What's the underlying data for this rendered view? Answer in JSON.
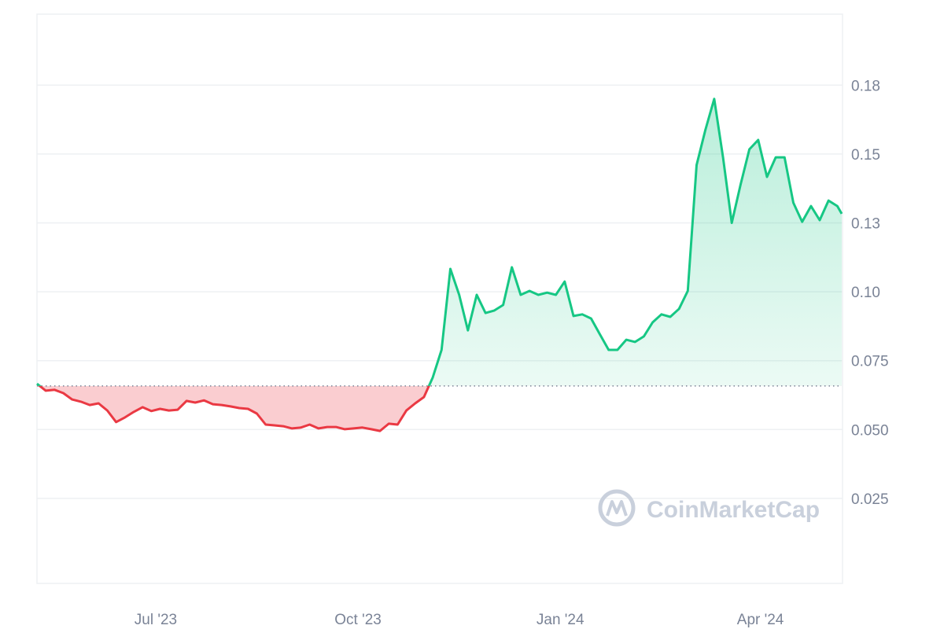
{
  "chart_data": {
    "type": "area",
    "title": "",
    "xlabel": "",
    "ylabel": "",
    "ylim": [
      0,
      0.2
    ],
    "grid": true,
    "baseline": 0.0658,
    "colors": {
      "up": "#16c784",
      "down": "#ea3943",
      "grid": "#eef0f3",
      "axis_text": "#7a8396",
      "watermark": "#c9d0dc"
    },
    "x_ticks": [
      {
        "date": "2023-07-01",
        "label": "Jul '23"
      },
      {
        "date": "2023-10-01",
        "label": "Oct '23"
      },
      {
        "date": "2024-01-01",
        "label": "Jan '24"
      },
      {
        "date": "2024-04-01",
        "label": "Apr '24"
      }
    ],
    "y_ticks": [
      {
        "value": 0.025,
        "label": "0.025"
      },
      {
        "value": 0.05,
        "label": "0.050"
      },
      {
        "value": 0.075,
        "label": "0.075"
      },
      {
        "value": 0.1,
        "label": "0.10"
      },
      {
        "value": 0.125,
        "label": "0.13"
      },
      {
        "value": 0.15,
        "label": "0.15"
      },
      {
        "value": 0.175,
        "label": "0.18"
      }
    ],
    "xlim": [
      "2023-05-08",
      "2024-05-08"
    ],
    "series": [
      {
        "dates": [
          "2023-05-08",
          "2023-05-12",
          "2023-05-16",
          "2023-05-20",
          "2023-05-24",
          "2023-05-28",
          "2023-06-01",
          "2023-06-05",
          "2023-06-09",
          "2023-06-13",
          "2023-06-17",
          "2023-06-21",
          "2023-06-25",
          "2023-06-29",
          "2023-07-03",
          "2023-07-07",
          "2023-07-11",
          "2023-07-15",
          "2023-07-19",
          "2023-07-23",
          "2023-07-27",
          "2023-07-31",
          "2023-08-04",
          "2023-08-08",
          "2023-08-12",
          "2023-08-16",
          "2023-08-20",
          "2023-08-24",
          "2023-08-28",
          "2023-09-01",
          "2023-09-05",
          "2023-09-09",
          "2023-09-13",
          "2023-09-17",
          "2023-09-21",
          "2023-09-25",
          "2023-09-29",
          "2023-10-03",
          "2023-10-07",
          "2023-10-11",
          "2023-10-15",
          "2023-10-19",
          "2023-10-23",
          "2023-10-27",
          "2023-10-31",
          "2023-11-04",
          "2023-11-08",
          "2023-11-12",
          "2023-11-16",
          "2023-11-20",
          "2023-11-24",
          "2023-11-28",
          "2023-12-02",
          "2023-12-06",
          "2023-12-10",
          "2023-12-14",
          "2023-12-18",
          "2023-12-22",
          "2023-12-26",
          "2023-12-30",
          "2024-01-03",
          "2024-01-07",
          "2024-01-11",
          "2024-01-15",
          "2024-01-19",
          "2024-01-23",
          "2024-01-27",
          "2024-01-31",
          "2024-02-04",
          "2024-02-08",
          "2024-02-12",
          "2024-02-16",
          "2024-02-20",
          "2024-02-24",
          "2024-02-28",
          "2024-03-03",
          "2024-03-07",
          "2024-03-11",
          "2024-03-15",
          "2024-03-19",
          "2024-03-23",
          "2024-03-27",
          "2024-03-31",
          "2024-04-04",
          "2024-04-08",
          "2024-04-12",
          "2024-04-16",
          "2024-04-20",
          "2024-04-24",
          "2024-04-28",
          "2024-05-02",
          "2024-05-06",
          "2024-05-08"
        ],
        "values": [
          0.0666,
          0.0641,
          0.0644,
          0.0632,
          0.0609,
          0.0601,
          0.0589,
          0.0595,
          0.0569,
          0.0527,
          0.0544,
          0.0564,
          0.0581,
          0.0567,
          0.0575,
          0.0569,
          0.0572,
          0.0604,
          0.0598,
          0.0606,
          0.0592,
          0.0589,
          0.0584,
          0.0578,
          0.0575,
          0.0558,
          0.0518,
          0.0515,
          0.0512,
          0.0504,
          0.0507,
          0.0518,
          0.0504,
          0.0509,
          0.0509,
          0.0501,
          0.0504,
          0.0507,
          0.0501,
          0.0495,
          0.0521,
          0.0518,
          0.0569,
          0.0595,
          0.0618,
          0.0689,
          0.0789,
          0.1083,
          0.0989,
          0.086,
          0.0989,
          0.0923,
          0.0932,
          0.0952,
          0.1089,
          0.0989,
          0.1003,
          0.0989,
          0.0997,
          0.0989,
          0.1037,
          0.0912,
          0.0918,
          0.0903,
          0.0846,
          0.0789,
          0.0789,
          0.0826,
          0.0818,
          0.0838,
          0.0889,
          0.0918,
          0.0909,
          0.0938,
          0.1003,
          0.146,
          0.1588,
          0.17,
          0.1488,
          0.125,
          0.1389,
          0.1517,
          0.1551,
          0.1417,
          0.1488,
          0.1488,
          0.1323,
          0.1254,
          0.1311,
          0.126,
          0.1331,
          0.1311,
          0.1283
        ]
      }
    ]
  },
  "watermark": {
    "text": "CoinMarketCap"
  }
}
